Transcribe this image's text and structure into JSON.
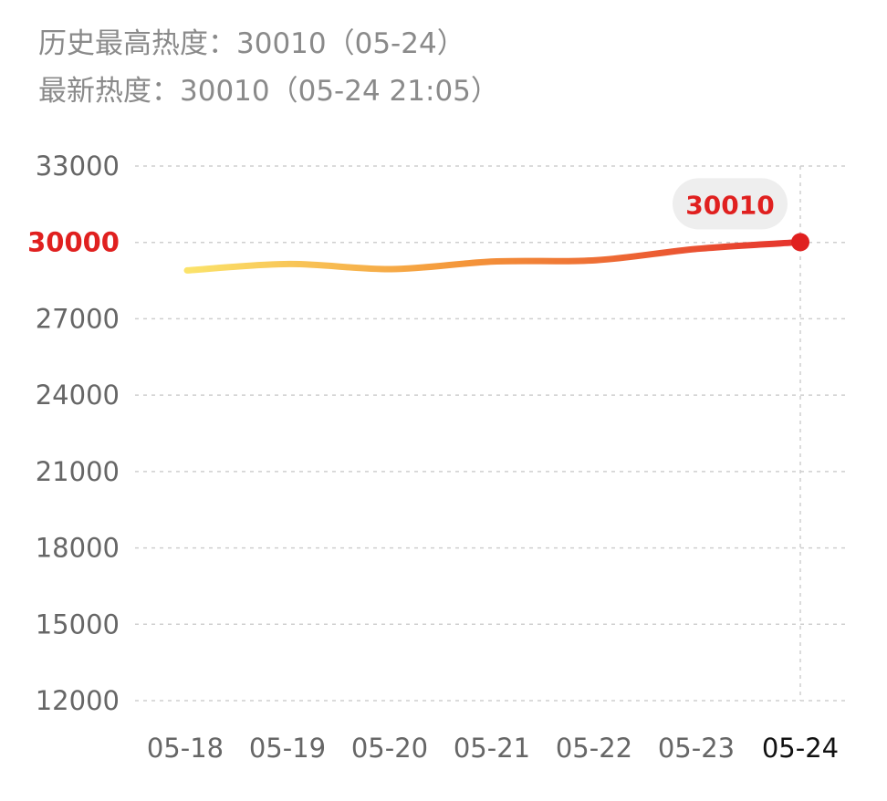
{
  "header": {
    "peak_line": "历史最高热度：30010（05-24）",
    "latest_line": "最新热度：30010（05-24 21:05）"
  },
  "chart_data": {
    "type": "line",
    "title": "",
    "xlabel": "",
    "ylabel": "",
    "categories": [
      "05-18",
      "05-19",
      "05-20",
      "05-21",
      "05-22",
      "05-23",
      "05-24"
    ],
    "series": [
      {
        "values": [
          28900,
          29150,
          28950,
          29250,
          29300,
          29750,
          30010
        ]
      }
    ],
    "y_ticks": [
      12000,
      15000,
      18000,
      21000,
      24000,
      27000,
      30000,
      33000
    ],
    "ylim": [
      12000,
      33000
    ],
    "highlighted_tick": "30000",
    "highlight_label": "30010",
    "grid": true,
    "colors": {
      "line_start": "#fbe36a",
      "line_mid": "#f4963a",
      "line_end": "#e5322d",
      "highlight": "#e0201f",
      "tick_text": "#666666",
      "last_category_text": "#111111",
      "grid": "#cfcfcf",
      "label_bubble": "#eeeeee"
    }
  }
}
